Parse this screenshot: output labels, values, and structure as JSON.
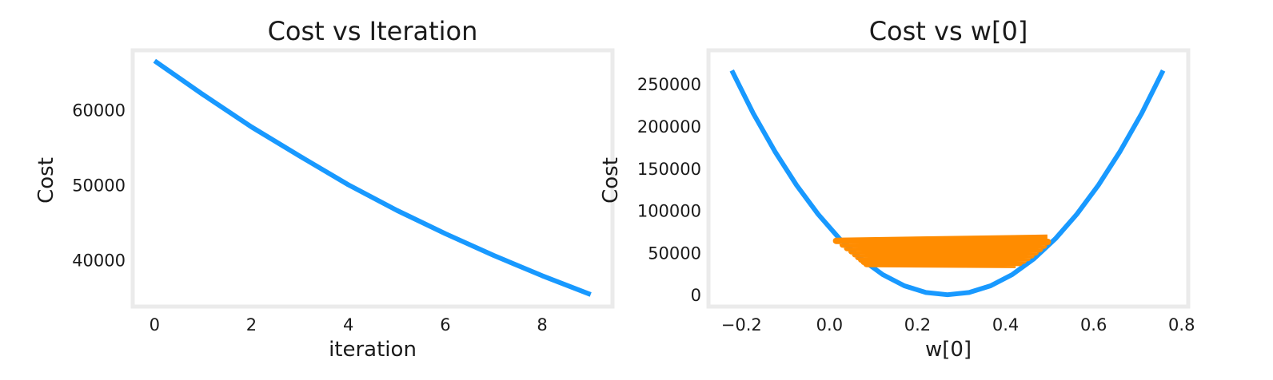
{
  "chart_data": [
    {
      "type": "line",
      "title": "Cost vs Iteration",
      "xlabel": "iteration",
      "ylabel": "Cost",
      "xlim": [
        -0.45,
        9.45
      ],
      "ylim": [
        33800,
        67900
      ],
      "xticks": [
        0,
        2,
        4,
        6,
        8
      ],
      "yticks": [
        40000,
        50000,
        60000
      ],
      "grid": false,
      "colors": {
        "series": "#1899ff",
        "frame": "#ebebeb"
      },
      "series": [
        {
          "x": [
            0,
            1,
            2,
            3,
            4,
            5,
            6,
            7,
            8,
            9
          ],
          "y": [
            66500,
            62000,
            57700,
            53800,
            50000,
            46600,
            43500,
            40600,
            37900,
            35400
          ]
        }
      ]
    },
    {
      "type": "line",
      "title": "Cost vs w[0]",
      "xlabel": "w[0]",
      "ylabel": "Cost",
      "xlim": [
        -0.275,
        0.815
      ],
      "ylim": [
        -14000,
        290000
      ],
      "xticks": [
        -0.2,
        0.0,
        0.2,
        0.4,
        0.6,
        0.8
      ],
      "xtick_labels": [
        "−0.2",
        "0.0",
        "0.2",
        "0.4",
        "0.6",
        "0.8"
      ],
      "yticks": [
        0,
        50000,
        100000,
        150000,
        200000,
        250000
      ],
      "grid": false,
      "colors": {
        "curve": "#1899ff",
        "path": "#ff8c00",
        "frame": "#ebebeb"
      },
      "series": [
        {
          "x": [
            -0.222,
            -0.173,
            -0.124,
            -0.075,
            -0.026,
            0.023,
            0.072,
            0.121,
            0.17,
            0.219,
            0.268,
            0.317,
            0.366,
            0.415,
            0.464,
            0.513,
            0.562,
            0.611,
            0.66,
            0.709,
            0.758
          ],
          "y": [
            266000,
            215000,
            170000,
            130000,
            95600,
            66400,
            42500,
            23900,
            10600,
            2660,
            0,
            2660,
            10600,
            23900,
            42500,
            66400,
            95600,
            130000,
            170000,
            215000,
            266000
          ]
        },
        {
          "x": [
            0.495,
            0.015,
            0.496,
            0.03,
            0.487,
            0.04,
            0.478,
            0.05,
            0.468,
            0.058,
            0.459,
            0.065,
            0.45,
            0.072,
            0.441,
            0.078,
            0.432,
            0.084,
            0.423
          ],
          "y": [
            67600,
            63900,
            62700,
            59500,
            58200,
            55300,
            54000,
            51500,
            50200,
            48000,
            46700,
            44700,
            43400,
            41700,
            40400,
            39000,
            37700,
            36500,
            35300
          ]
        }
      ]
    }
  ]
}
